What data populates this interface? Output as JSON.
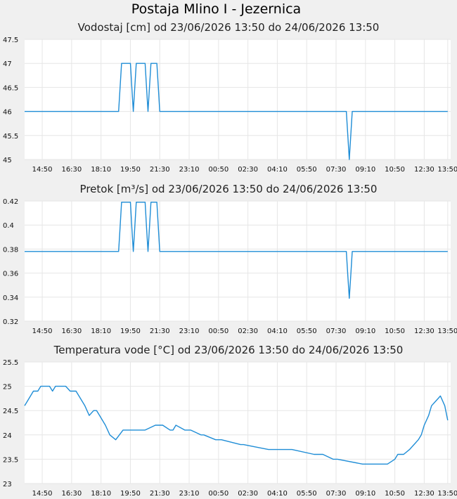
{
  "page_title": "Postaja Mlino I - Jezernica",
  "chart_data": [
    {
      "type": "line",
      "title": "Vodostaj [cm] od 23/06/2026 13:50 do 24/06/2026 13:50",
      "ylim": [
        45,
        47.5
      ],
      "y_ticks": [
        "45",
        "45.5",
        "46",
        "46.5",
        "47",
        "47.5"
      ],
      "x_range_min": [
        0,
        1450
      ],
      "x_tick_minutes": [
        60,
        160,
        260,
        360,
        460,
        560,
        660,
        760,
        860,
        960,
        1060,
        1160,
        1260,
        1360,
        1440
      ],
      "x_tick_labels": [
        "14:50",
        "16:30",
        "18:10",
        "19:50",
        "21:30",
        "23:10",
        "00:50",
        "02:30",
        "04:10",
        "05:50",
        "07:30",
        "09:10",
        "10:50",
        "12:30",
        "13:50"
      ],
      "grid": true,
      "line_color": "#1f8dd6",
      "series": [
        {
          "x": [
            0,
            320,
            325,
            330,
            335,
            360,
            365,
            370,
            375,
            380,
            385,
            410,
            415,
            420,
            425,
            430,
            435,
            450,
            455,
            460,
            1095,
            1100,
            1105,
            1110,
            1115,
            1440
          ],
          "values": [
            46,
            46,
            46.5,
            47,
            47,
            47,
            46.5,
            46,
            46.5,
            47,
            47,
            47,
            46.5,
            46,
            46.5,
            47,
            47,
            47,
            46.5,
            46,
            46,
            45.5,
            45,
            45.5,
            46,
            46
          ]
        }
      ]
    },
    {
      "type": "line",
      "title": "Pretok [m³/s] od 23/06/2026 13:50 do 24/06/2026 13:50",
      "ylim": [
        0.32,
        0.42
      ],
      "y_ticks": [
        "0.32",
        "0.34",
        "0.36",
        "0.38",
        "0.4",
        "0.42"
      ],
      "x_range_min": [
        0,
        1450
      ],
      "x_tick_minutes": [
        60,
        160,
        260,
        360,
        460,
        560,
        660,
        760,
        860,
        960,
        1060,
        1160,
        1260,
        1360,
        1440
      ],
      "x_tick_labels": [
        "14:50",
        "16:30",
        "18:10",
        "19:50",
        "21:30",
        "23:10",
        "00:50",
        "02:30",
        "04:10",
        "05:50",
        "07:30",
        "09:10",
        "10:50",
        "12:30",
        "13:50"
      ],
      "grid": true,
      "line_color": "#1f8dd6",
      "series": [
        {
          "x": [
            0,
            320,
            325,
            330,
            335,
            360,
            365,
            370,
            375,
            380,
            385,
            410,
            415,
            420,
            425,
            430,
            435,
            450,
            455,
            460,
            1095,
            1100,
            1105,
            1110,
            1115,
            1440
          ],
          "values": [
            0.378,
            0.378,
            0.398,
            0.419,
            0.419,
            0.419,
            0.398,
            0.378,
            0.398,
            0.419,
            0.419,
            0.419,
            0.398,
            0.378,
            0.398,
            0.419,
            0.419,
            0.419,
            0.398,
            0.378,
            0.378,
            0.358,
            0.339,
            0.358,
            0.378,
            0.378
          ]
        }
      ]
    },
    {
      "type": "line",
      "title": "Temperatura vode [°C] od 23/06/2026 13:50 do 24/06/2026 13:50",
      "ylim": [
        23,
        25.5
      ],
      "y_ticks": [
        "23",
        "23.5",
        "24",
        "24.5",
        "25",
        "25.5"
      ],
      "x_range_min": [
        0,
        1450
      ],
      "x_tick_minutes": [
        60,
        160,
        260,
        360,
        460,
        560,
        660,
        760,
        860,
        960,
        1060,
        1160,
        1260,
        1360,
        1440
      ],
      "x_tick_labels": [
        "14:50",
        "16:30",
        "18:10",
        "19:50",
        "21:30",
        "23:10",
        "00:50",
        "02:30",
        "04:10",
        "05:50",
        "07:30",
        "09:10",
        "10:50",
        "12:30",
        "13:50"
      ],
      "grid": true,
      "line_color": "#1f8dd6",
      "series": [
        {
          "x": [
            0,
            10,
            20,
            30,
            45,
            55,
            85,
            95,
            105,
            140,
            155,
            175,
            205,
            220,
            235,
            245,
            255,
            275,
            290,
            310,
            335,
            410,
            445,
            470,
            495,
            505,
            515,
            545,
            565,
            600,
            610,
            650,
            670,
            735,
            745,
            830,
            840,
            910,
            985,
            1005,
            1015,
            1050,
            1065,
            1150,
            1160,
            1180,
            1200,
            1220,
            1235,
            1260,
            1270,
            1290,
            1310,
            1325,
            1340,
            1350,
            1360,
            1375,
            1385,
            1400,
            1415,
            1430,
            1440
          ],
          "values": [
            24.6,
            24.7,
            24.8,
            24.9,
            24.9,
            25.0,
            25.0,
            24.9,
            25.0,
            25.0,
            24.9,
            24.9,
            24.6,
            24.4,
            24.5,
            24.5,
            24.4,
            24.2,
            24.0,
            23.9,
            24.1,
            24.1,
            24.2,
            24.2,
            24.1,
            24.1,
            24.2,
            24.1,
            24.1,
            24.0,
            24.0,
            23.9,
            23.9,
            23.8,
            23.8,
            23.7,
            23.7,
            23.7,
            23.6,
            23.6,
            23.6,
            23.5,
            23.5,
            23.4,
            23.4,
            23.4,
            23.4,
            23.4,
            23.4,
            23.5,
            23.6,
            23.6,
            23.7,
            23.8,
            23.9,
            24.0,
            24.2,
            24.4,
            24.6,
            24.7,
            24.8,
            24.6,
            24.3
          ]
        }
      ]
    }
  ]
}
